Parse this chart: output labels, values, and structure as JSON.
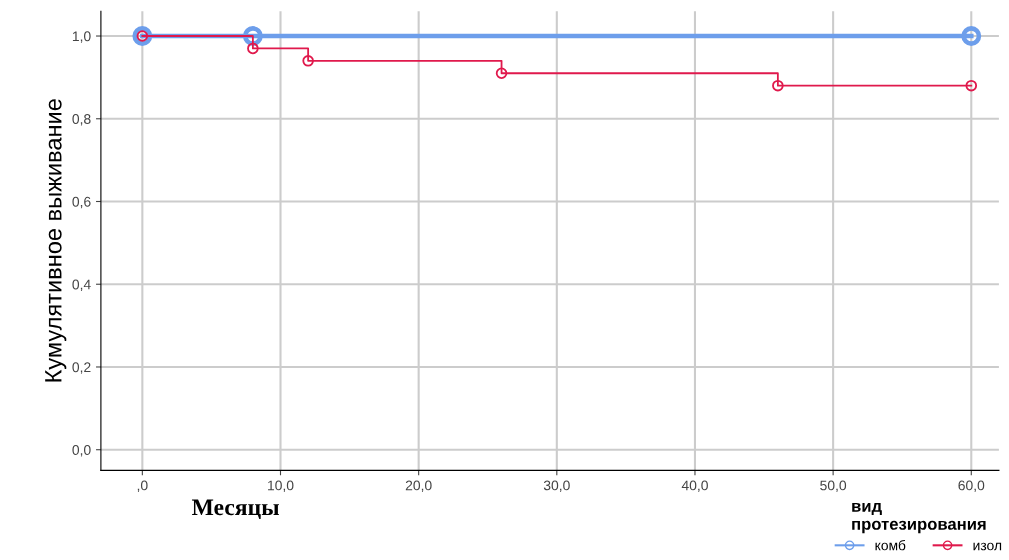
{
  "chart_data": {
    "type": "step",
    "xlabel": "Месяцы",
    "ylabel": "Кумулятивное выживание",
    "legend_title": "вид\nпротезирования",
    "series": [
      {
        "name": "комб",
        "color": "#6d9eeb",
        "x": [
          0,
          8,
          60
        ],
        "values": [
          1.0,
          1.0,
          1.0
        ]
      },
      {
        "name": "изол",
        "color": "#e0194c",
        "x": [
          0,
          8,
          12,
          26,
          46,
          60
        ],
        "values": [
          1.0,
          0.97,
          0.94,
          0.91,
          0.88,
          0.88
        ]
      }
    ],
    "xlim": [
      -3,
      62
    ],
    "ylim": [
      -0.05,
      1.06
    ],
    "xticks": [
      {
        "value": 0,
        "label": ",0"
      },
      {
        "value": 10,
        "label": "10,0"
      },
      {
        "value": 20,
        "label": "20,0"
      },
      {
        "value": 30,
        "label": "30,0"
      },
      {
        "value": 40,
        "label": "40,0"
      },
      {
        "value": 50,
        "label": "50,0"
      },
      {
        "value": 60,
        "label": "60,0"
      }
    ],
    "yticks": [
      {
        "value": 0,
        "label": "0,0"
      },
      {
        "value": 0.2,
        "label": "0,2"
      },
      {
        "value": 0.4,
        "label": "0,4"
      },
      {
        "value": 0.6,
        "label": "0,6"
      },
      {
        "value": 0.8,
        "label": "0,8"
      },
      {
        "value": 1.0,
        "label": "1,0"
      }
    ],
    "grid": true,
    "legend": "bottom right",
    "marker": "circle",
    "line_style": "solid"
  }
}
